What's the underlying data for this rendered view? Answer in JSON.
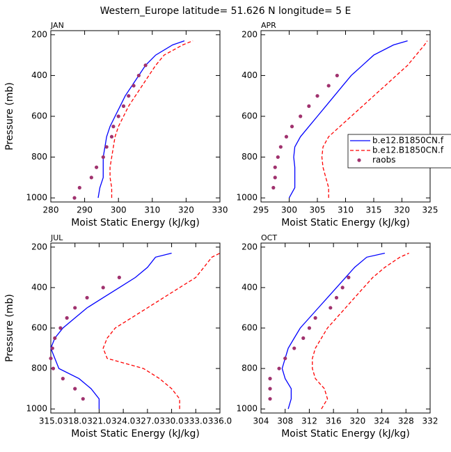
{
  "title": "Western_Europe  latitude= 51.626 N longitude= 5 E",
  "chart_data": [
    {
      "type": "line",
      "title": "JAN",
      "xlabel": "Moist Static Energy (kJ/kg)",
      "ylabel": "Pressure (mb)",
      "xlim": [
        280,
        330
      ],
      "xticks": [
        280,
        290,
        300,
        310,
        320,
        330
      ],
      "ylim": [
        1020,
        180
      ],
      "yticks": [
        200,
        400,
        600,
        800,
        1000
      ],
      "series": [
        {
          "color": "#0000ff",
          "style": "solid",
          "y": [
            1000,
            950,
            900,
            850,
            800,
            750,
            700,
            650,
            600,
            550,
            500,
            450,
            400,
            350,
            300,
            250,
            230
          ],
          "x": [
            294,
            294.5,
            295.5,
            295.5,
            295.5,
            296,
            296.5,
            297.5,
            299,
            300.5,
            302,
            304,
            306,
            308,
            311,
            316,
            319.5
          ]
        },
        {
          "color": "#ff0000",
          "style": "dashed",
          "y": [
            1000,
            950,
            900,
            850,
            800,
            750,
            700,
            650,
            600,
            550,
            500,
            450,
            400,
            350,
            300,
            250,
            230
          ],
          "x": [
            298,
            298,
            297.5,
            297.5,
            298,
            298.5,
            299,
            300,
            301.5,
            303,
            305,
            307,
            309,
            311,
            313.5,
            319,
            322
          ]
        },
        {
          "color": "#a0326e",
          "style": "markers",
          "y": [
            1000,
            950,
            900,
            850,
            800,
            750,
            700,
            650,
            600,
            550,
            500,
            450,
            400,
            350
          ],
          "x": [
            287,
            288.5,
            292,
            293.5,
            295.5,
            296.5,
            298,
            298.5,
            300,
            301.5,
            303,
            304.5,
            306,
            308
          ]
        }
      ]
    },
    {
      "type": "line",
      "title": "APR",
      "xlabel": "Moist Static Energy (kJ/kg)",
      "xlim": [
        295,
        325
      ],
      "xticks": [
        295,
        300,
        305,
        310,
        315,
        320,
        325
      ],
      "ylim": [
        1020,
        180
      ],
      "yticks": [
        200,
        400,
        600,
        800,
        1000
      ],
      "legend": "right",
      "series": [
        {
          "name": "b.e12.B1850CN.f",
          "color": "#0000ff",
          "style": "solid",
          "y": [
            1000,
            950,
            900,
            850,
            800,
            750,
            700,
            650,
            600,
            550,
            500,
            450,
            400,
            350,
            300,
            250,
            230
          ],
          "x": [
            300,
            301,
            301,
            301,
            300.8,
            301,
            302,
            303.5,
            305,
            306.5,
            308,
            309.5,
            311,
            313,
            315,
            318.5,
            321
          ]
        },
        {
          "name": "b.e12.B1850CN.f",
          "color": "#ff0000",
          "style": "dashed",
          "y": [
            1000,
            950,
            900,
            850,
            800,
            750,
            700,
            650,
            600,
            550,
            500,
            450,
            400,
            350,
            300,
            250,
            230
          ],
          "x": [
            307,
            307,
            306.5,
            306,
            305.8,
            306,
            307,
            309,
            311,
            313,
            315,
            317,
            319,
            321,
            322.5,
            324,
            324.5
          ]
        },
        {
          "name": "raobs",
          "color": "#a0326e",
          "style": "markers",
          "y": [
            950,
            900,
            850,
            800,
            750,
            700,
            650,
            600,
            550,
            500,
            450,
            400
          ],
          "x": [
            297.2,
            297.5,
            297.5,
            298,
            298.5,
            299.5,
            300.5,
            302,
            303.5,
            305,
            307,
            308.5
          ]
        }
      ]
    },
    {
      "type": "line",
      "title": "JUL",
      "xlabel": "Moist Static Energy (kJ/kg)",
      "ylabel": "Pressure (mb)",
      "xlim": [
        315,
        336
      ],
      "xticks": [
        {
          "value": 315,
          "label": "315.0"
        },
        {
          "value": 318,
          "label": "318.0"
        },
        {
          "value": 321,
          "label": "321.0"
        },
        {
          "value": 324,
          "label": "324.0"
        },
        {
          "value": 327,
          "label": "327.0"
        },
        {
          "value": 330,
          "label": "330.0"
        },
        {
          "value": 333,
          "label": "333.0"
        },
        {
          "value": 336,
          "label": "336.0"
        }
      ],
      "ylim": [
        1020,
        180
      ],
      "yticks": [
        200,
        400,
        600,
        800,
        1000
      ],
      "series": [
        {
          "color": "#0000ff",
          "style": "solid",
          "y": [
            1000,
            950,
            900,
            850,
            800,
            750,
            700,
            650,
            600,
            550,
            500,
            450,
            400,
            350,
            300,
            250,
            230
          ],
          "x": [
            321,
            321,
            320,
            318.5,
            316,
            315.5,
            315,
            315.5,
            316.5,
            318,
            319.5,
            321.5,
            323.5,
            325.5,
            327,
            328,
            330
          ]
        },
        {
          "color": "#ff0000",
          "style": "dashed",
          "y": [
            1000,
            950,
            900,
            850,
            800,
            750,
            700,
            650,
            600,
            550,
            500,
            450,
            400,
            350,
            300,
            250,
            230
          ],
          "x": [
            331,
            331,
            330,
            328.5,
            326.5,
            322,
            321.5,
            322,
            323,
            325,
            327,
            329,
            331,
            333,
            334,
            335,
            336
          ]
        },
        {
          "color": "#a0326e",
          "style": "markers",
          "y": [
            950,
            900,
            850,
            800,
            750,
            700,
            650,
            600,
            550,
            500,
            450,
            400,
            350
          ],
          "x": [
            319,
            318,
            316.5,
            315.3,
            315,
            315.2,
            315.5,
            316.2,
            317,
            318,
            319.5,
            321.5,
            323.5
          ]
        }
      ]
    },
    {
      "type": "line",
      "title": "OCT",
      "xlabel": "Moist Static Energy (kJ/kg)",
      "xlim": [
        304,
        332
      ],
      "xticks": [
        304,
        308,
        312,
        316,
        320,
        324,
        328,
        332
      ],
      "ylim": [
        1020,
        180
      ],
      "yticks": [
        200,
        400,
        600,
        800,
        1000
      ],
      "series": [
        {
          "color": "#0000ff",
          "style": "solid",
          "y": [
            1000,
            950,
            900,
            850,
            800,
            750,
            700,
            650,
            600,
            550,
            500,
            450,
            400,
            350,
            300,
            250,
            230
          ],
          "x": [
            308.5,
            309,
            309,
            308,
            307.5,
            308,
            308.5,
            309.5,
            310.5,
            312,
            313.5,
            315,
            316.5,
            318,
            319.5,
            321.5,
            324.5
          ]
        },
        {
          "color": "#ff0000",
          "style": "dashed",
          "y": [
            1000,
            950,
            900,
            850,
            800,
            750,
            700,
            650,
            600,
            550,
            500,
            450,
            400,
            350,
            300,
            250,
            230
          ],
          "x": [
            314,
            315,
            314.5,
            313,
            312.5,
            312.5,
            313,
            314,
            315,
            316.5,
            318,
            319.5,
            321,
            322.5,
            324.5,
            327,
            328.5
          ]
        },
        {
          "color": "#a0326e",
          "style": "markers",
          "y": [
            950,
            900,
            850,
            800,
            750,
            700,
            650,
            600,
            550,
            500,
            450,
            400,
            350
          ],
          "x": [
            305.5,
            305.5,
            305.5,
            307,
            308,
            309.5,
            311,
            312,
            313,
            315.5,
            316.5,
            317.5,
            318.5
          ]
        }
      ]
    }
  ]
}
